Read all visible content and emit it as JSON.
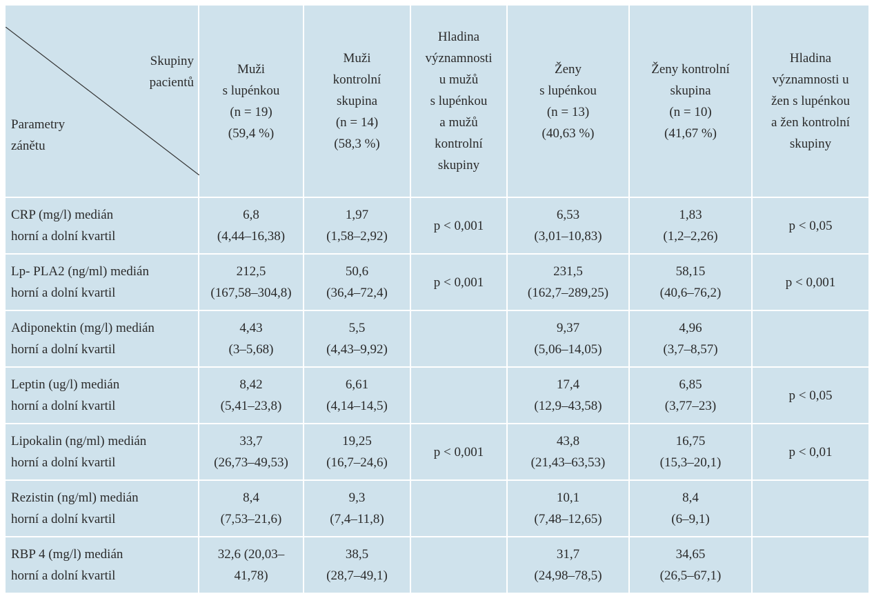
{
  "table": {
    "header": {
      "corner_top": "Skupiny\npacientů",
      "corner_bottom": "Parametry\nzánětu",
      "columns": [
        "Muži\ns lupénkou\n(n = 19)\n(59,4 %)",
        "Muži\nkontrolní\nskupina\n(n = 14)\n(58,3 %)",
        "Hladina\nvýznamnosti\nu mužů\ns lupénkou\na mužů\nkontrolní\nskupiny",
        "Ženy\ns lupénkou\n(n = 13)\n(40,63 %)",
        "Ženy kontrolní\nskupina\n(n = 10)\n(41,67 %)",
        "Hladina\nvýznamnosti u\nžen s lupénkou\na žen kontrolní\nskupiny"
      ]
    },
    "rows": [
      {
        "parameter": "CRP (mg/l) medián\nhorní a dolní kvartil",
        "men_psoriasis": "6,8\n(4,44–16,38)",
        "men_control": "1,97\n(1,58–2,92)",
        "men_significance": "p < 0,001",
        "women_psoriasis": "6,53\n(3,01–10,83)",
        "women_control": "1,83\n(1,2–2,26)",
        "women_significance": "p < 0,05"
      },
      {
        "parameter": "Lp- PLA2 (ng/ml) medián\nhorní a dolní kvartil",
        "men_psoriasis": "212,5\n(167,58–304,8)",
        "men_control": "50,6\n(36,4–72,4)",
        "men_significance": "p < 0,001",
        "women_psoriasis": "231,5\n(162,7–289,25)",
        "women_control": "58,15\n(40,6–76,2)",
        "women_significance": "p < 0,001"
      },
      {
        "parameter": "Adiponektin (mg/l) medián\nhorní a dolní kvartil",
        "men_psoriasis": "4,43\n(3–5,68)",
        "men_control": "5,5\n(4,43–9,92)",
        "women_psoriasis": "9,37\n(5,06–14,05)",
        "women_control": "4,96\n(3,7–8,57)"
      },
      {
        "parameter": "Leptin (ug/l) medián\nhorní a dolní kvartil",
        "men_psoriasis": "8,42\n(5,41–23,8)",
        "men_control": "6,61\n(4,14–14,5)",
        "women_psoriasis": "17,4\n(12,9–43,58)",
        "women_control": "6,85\n(3,77–23)",
        "women_significance": "p < 0,05"
      },
      {
        "parameter": "Lipokalin (ng/ml) medián\nhorní a dolní kvartil",
        "men_psoriasis": "33,7\n(26,73–49,53)",
        "men_control": "19,25\n(16,7–24,6)",
        "men_significance": "p < 0,001",
        "women_psoriasis": "43,8\n(21,43–63,53)",
        "women_control": "16,75\n(15,3–20,1)",
        "women_significance": "p < 0,01"
      },
      {
        "parameter": "Rezistin (ng/ml) medián\nhorní a dolní kvartil",
        "men_psoriasis": "8,4\n(7,53–21,6)",
        "men_control": "9,3\n(7,4–11,8)",
        "women_psoriasis": "10,1\n(7,48–12,65)",
        "women_control": "8,4\n(6–9,1)"
      },
      {
        "parameter": "RBP 4 (mg/l) medián\nhorní a dolní kvartil",
        "men_psoriasis": "32,6 (20,03–\n41,78)",
        "men_control": "38,5\n(28,7–49,1)",
        "women_psoriasis": "31,7\n(24,98–78,5)",
        "women_control": "34,65\n(26,5–67,1)"
      }
    ]
  }
}
